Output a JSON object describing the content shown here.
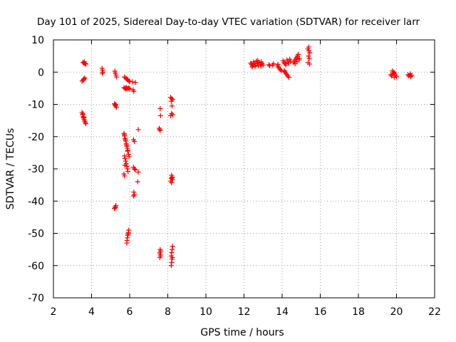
{
  "chart_data": {
    "type": "scatter",
    "title": "Day 101 of 2025, Sidereal Day-to-day VTEC variation (SDTVAR) for receiver larr",
    "xlabel": "GPS time / hours",
    "ylabel": "SDTVAR / TECUs",
    "xlim": [
      2,
      22
    ],
    "ylim": [
      -70,
      10
    ],
    "xticks": [
      2,
      4,
      6,
      8,
      10,
      12,
      14,
      16,
      18,
      20,
      22
    ],
    "yticks": [
      10,
      0,
      -10,
      -20,
      -30,
      -40,
      -50,
      -60,
      -70
    ],
    "grid": true,
    "marker": "+",
    "series": [
      {
        "name": "SDTVAR",
        "color": "#ff0000",
        "points": [
          [
            3.55,
            3.0
          ],
          [
            3.6,
            2.8
          ],
          [
            3.65,
            2.7
          ],
          [
            3.7,
            2.5
          ],
          [
            3.62,
            3.2
          ],
          [
            3.68,
            2.6
          ],
          [
            3.5,
            -2.8
          ],
          [
            3.55,
            -2.5
          ],
          [
            3.6,
            -2.1
          ],
          [
            3.65,
            -1.8
          ],
          [
            3.58,
            -2.3
          ],
          [
            3.5,
            -12.5
          ],
          [
            3.53,
            -13.2
          ],
          [
            3.56,
            -13.8
          ],
          [
            3.58,
            -14.2
          ],
          [
            3.61,
            -14.7
          ],
          [
            3.64,
            -15.2
          ],
          [
            3.67,
            -15.6
          ],
          [
            3.7,
            -16.0
          ],
          [
            3.55,
            -12.9
          ],
          [
            3.6,
            -14.0
          ],
          [
            4.55,
            1.2
          ],
          [
            4.58,
            0.6
          ],
          [
            4.6,
            0.0
          ],
          [
            4.56,
            -0.4
          ],
          [
            5.22,
            0.3
          ],
          [
            5.25,
            -0.3
          ],
          [
            5.28,
            -0.9
          ],
          [
            5.3,
            -1.5
          ],
          [
            5.2,
            -9.8
          ],
          [
            5.23,
            -10.2
          ],
          [
            5.26,
            -10.5
          ],
          [
            5.3,
            -10.9
          ],
          [
            5.27,
            -10.0
          ],
          [
            5.2,
            -42.3
          ],
          [
            5.24,
            -41.8
          ],
          [
            5.28,
            -41.4
          ],
          [
            5.25,
            -42.0
          ],
          [
            5.72,
            -1.5
          ],
          [
            5.78,
            -1.8
          ],
          [
            5.84,
            -2.1
          ],
          [
            5.9,
            -2.4
          ],
          [
            5.96,
            -2.7
          ],
          [
            6.0,
            -3.0
          ],
          [
            5.87,
            -2.2
          ],
          [
            5.7,
            -4.8
          ],
          [
            5.75,
            -5.0
          ],
          [
            5.8,
            -5.2
          ],
          [
            5.85,
            -5.0
          ],
          [
            5.9,
            -5.1
          ],
          [
            5.95,
            -4.9
          ],
          [
            6.0,
            -5.2
          ],
          [
            5.82,
            -4.7
          ],
          [
            6.15,
            -3.0
          ],
          [
            6.3,
            -3.2
          ],
          [
            6.18,
            -5.5
          ],
          [
            6.22,
            -6.0
          ],
          [
            5.7,
            -19.0
          ],
          [
            5.73,
            -19.8
          ],
          [
            5.76,
            -20.6
          ],
          [
            5.79,
            -21.4
          ],
          [
            5.82,
            -22.2
          ],
          [
            5.85,
            -23.0
          ],
          [
            5.88,
            -23.6
          ],
          [
            5.9,
            -24.2
          ],
          [
            5.72,
            -19.4
          ],
          [
            5.78,
            -21.0
          ],
          [
            5.84,
            -22.6
          ],
          [
            5.89,
            -24.5
          ],
          [
            5.73,
            -26.0
          ],
          [
            5.76,
            -26.8
          ],
          [
            5.79,
            -27.6
          ],
          [
            5.82,
            -28.4
          ],
          [
            5.85,
            -29.2
          ],
          [
            5.88,
            -30.0
          ],
          [
            5.91,
            -30.8
          ],
          [
            5.7,
            -31.6
          ],
          [
            5.73,
            -32.2
          ],
          [
            5.94,
            -25.5
          ],
          [
            5.97,
            -26.2
          ],
          [
            5.75,
            -28.9
          ],
          [
            6.2,
            -21.0
          ],
          [
            6.25,
            -21.5
          ],
          [
            6.45,
            -17.8
          ],
          [
            6.2,
            -29.5
          ],
          [
            6.25,
            -30.0
          ],
          [
            6.3,
            -30.3
          ],
          [
            6.45,
            -31.0
          ],
          [
            6.42,
            -34.0
          ],
          [
            6.22,
            -37.2
          ],
          [
            6.25,
            -38.0
          ],
          [
            6.2,
            -38.4
          ],
          [
            5.95,
            -49.0
          ],
          [
            5.93,
            -49.8
          ],
          [
            5.9,
            -50.6
          ],
          [
            5.88,
            -51.4
          ],
          [
            5.86,
            -52.2
          ],
          [
            5.85,
            -53.0
          ],
          [
            5.92,
            -50.2
          ],
          [
            7.6,
            -11.3
          ],
          [
            7.62,
            -13.5
          ],
          [
            7.55,
            -17.4
          ],
          [
            7.58,
            -17.8
          ],
          [
            7.6,
            -18.1
          ],
          [
            7.6,
            -55.0
          ],
          [
            7.62,
            -55.5
          ],
          [
            7.58,
            -56.0
          ],
          [
            7.6,
            -56.5
          ],
          [
            7.62,
            -57.0
          ],
          [
            7.58,
            -57.5
          ],
          [
            8.15,
            -7.8
          ],
          [
            8.2,
            -8.2
          ],
          [
            8.25,
            -8.5
          ],
          [
            8.18,
            -9.0
          ],
          [
            8.22,
            -10.5
          ],
          [
            8.2,
            -12.8
          ],
          [
            8.25,
            -13.2
          ],
          [
            8.15,
            -13.5
          ],
          [
            8.2,
            -32.0
          ],
          [
            8.23,
            -32.5
          ],
          [
            8.18,
            -33.0
          ],
          [
            8.25,
            -33.3
          ],
          [
            8.15,
            -33.8
          ],
          [
            8.2,
            -34.3
          ],
          [
            8.22,
            -32.8
          ],
          [
            8.25,
            -54.0
          ],
          [
            8.23,
            -55.0
          ],
          [
            8.2,
            -56.0
          ],
          [
            8.18,
            -57.0
          ],
          [
            8.22,
            -58.0
          ],
          [
            8.2,
            -59.0
          ],
          [
            8.18,
            -60.0
          ],
          [
            8.24,
            -57.5
          ],
          [
            12.35,
            2.8
          ],
          [
            12.4,
            2.4
          ],
          [
            12.45,
            2.0
          ],
          [
            12.5,
            3.2
          ],
          [
            12.55,
            2.6
          ],
          [
            12.6,
            2.2
          ],
          [
            12.65,
            3.4
          ],
          [
            12.7,
            2.8
          ],
          [
            12.75,
            2.0
          ],
          [
            12.8,
            3.0
          ],
          [
            12.85,
            2.4
          ],
          [
            12.9,
            3.2
          ],
          [
            12.95,
            2.6
          ],
          [
            13.0,
            2.2
          ],
          [
            12.42,
            1.6
          ],
          [
            12.58,
            1.8
          ],
          [
            12.72,
            3.6
          ],
          [
            12.88,
            1.9
          ],
          [
            13.3,
            2.3
          ],
          [
            13.35,
            2.0
          ],
          [
            13.5,
            2.2
          ],
          [
            13.55,
            2.6
          ],
          [
            13.75,
            2.0
          ],
          [
            13.8,
            1.6
          ],
          [
            13.85,
            1.2
          ],
          [
            13.9,
            0.8
          ],
          [
            13.95,
            0.5
          ],
          [
            13.78,
            2.4
          ],
          [
            14.05,
            3.5
          ],
          [
            14.1,
            3.0
          ],
          [
            14.15,
            2.6
          ],
          [
            14.2,
            2.2
          ],
          [
            14.25,
            3.8
          ],
          [
            14.3,
            3.2
          ],
          [
            14.35,
            2.8
          ],
          [
            14.4,
            4.0
          ],
          [
            14.45,
            3.4
          ],
          [
            14.1,
            0.5
          ],
          [
            14.15,
            0.0
          ],
          [
            14.2,
            -0.4
          ],
          [
            14.25,
            -0.8
          ],
          [
            14.3,
            -1.2
          ],
          [
            14.35,
            -1.6
          ],
          [
            14.12,
            0.2
          ],
          [
            14.6,
            3.0
          ],
          [
            14.65,
            3.5
          ],
          [
            14.7,
            4.0
          ],
          [
            14.75,
            4.5
          ],
          [
            14.8,
            5.0
          ],
          [
            14.85,
            5.5
          ],
          [
            14.9,
            4.2
          ],
          [
            14.68,
            2.6
          ],
          [
            14.78,
            3.2
          ],
          [
            14.88,
            3.8
          ],
          [
            15.35,
            7.2
          ],
          [
            15.4,
            6.6
          ],
          [
            15.45,
            6.0
          ],
          [
            15.38,
            5.0
          ],
          [
            15.42,
            4.2
          ],
          [
            15.36,
            3.0
          ],
          [
            15.44,
            2.5
          ],
          [
            15.4,
            7.8
          ],
          [
            19.7,
            -0.8
          ],
          [
            19.75,
            -1.2
          ],
          [
            19.8,
            -0.5
          ],
          [
            19.85,
            0.0
          ],
          [
            19.9,
            -0.3
          ],
          [
            19.95,
            -0.9
          ],
          [
            20.0,
            -1.4
          ],
          [
            19.78,
            0.4
          ],
          [
            19.88,
            -1.6
          ],
          [
            20.6,
            -0.8
          ],
          [
            20.65,
            -1.2
          ],
          [
            20.7,
            -0.9
          ],
          [
            20.75,
            -1.4
          ],
          [
            20.8,
            -1.0
          ],
          [
            20.72,
            -0.5
          ]
        ]
      }
    ]
  }
}
